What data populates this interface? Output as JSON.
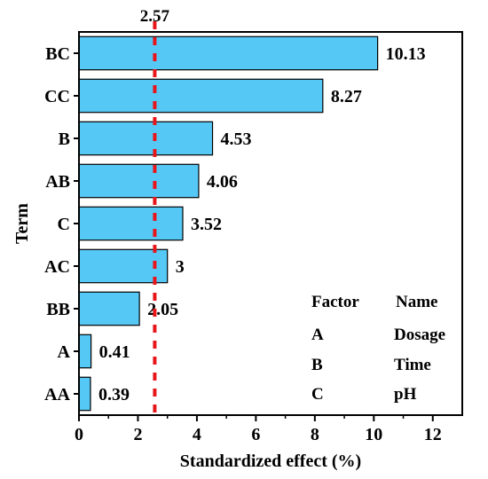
{
  "chart_data": {
    "type": "bar",
    "orientation": "horizontal",
    "title": "",
    "xlabel": "Standardized effect (%)",
    "ylabel": "Term",
    "xlim": [
      0,
      13
    ],
    "xticks": [
      "0",
      "2",
      "4",
      "6",
      "8",
      "10",
      "12"
    ],
    "grid": false,
    "categories": [
      "BC",
      "CC",
      "B",
      "AB",
      "C",
      "AC",
      "BB",
      "A",
      "AA"
    ],
    "values": [
      10.13,
      8.27,
      4.53,
      4.06,
      3.52,
      3,
      2.05,
      0.41,
      0.39
    ],
    "value_labels": [
      "10.13",
      "8.27",
      "4.53",
      "4.06",
      "3.52",
      "3",
      "2.05",
      "0.41",
      "0.39"
    ],
    "bar_color": "#56c8f5",
    "reference_line": {
      "value": 2.57,
      "label": "2.57",
      "color": "#e8161b",
      "style": "dashed"
    },
    "factor_table": {
      "headers": [
        "Factor",
        "Name"
      ],
      "rows": [
        [
          "A",
          "Dosage"
        ],
        [
          "B",
          "Time"
        ],
        [
          "C",
          "pH"
        ]
      ]
    }
  }
}
